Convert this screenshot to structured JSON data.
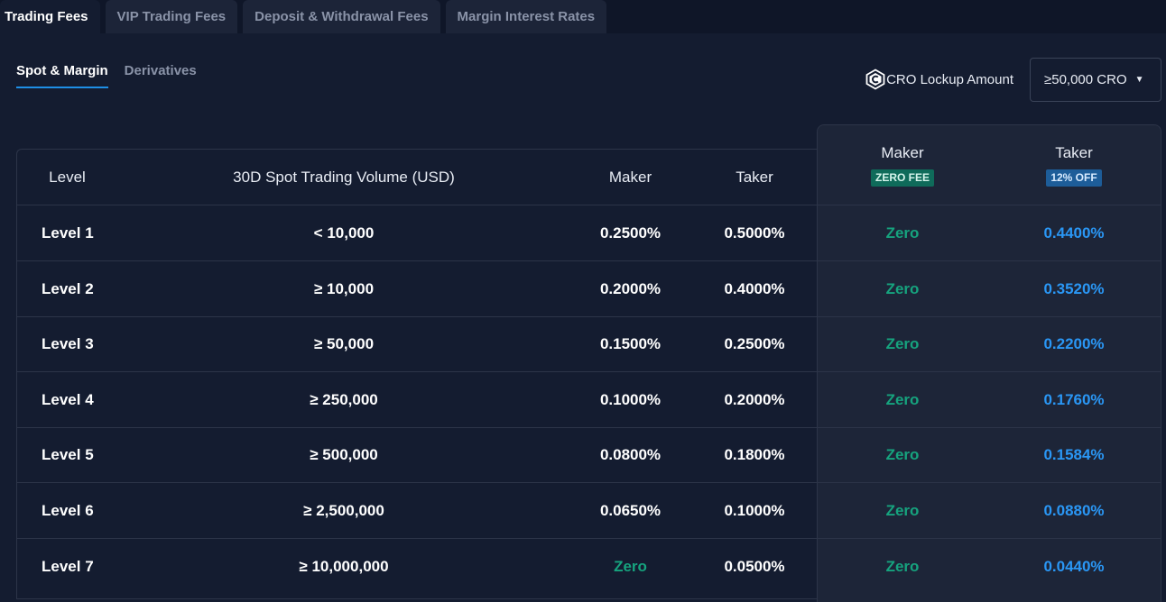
{
  "top_tabs": [
    "Trading Fees",
    "VIP Trading Fees",
    "Deposit & Withdrawal Fees",
    "Margin Interest Rates"
  ],
  "sub_tabs": [
    "Spot & Margin",
    "Derivatives"
  ],
  "lockup": {
    "label": "CRO Lockup Amount",
    "selected": "≥50,000 CRO",
    "icon": "cro-logo-icon"
  },
  "table": {
    "headers": {
      "level": "Level",
      "volume": "30D Spot Trading Volume (USD)",
      "maker": "Maker",
      "taker": "Taker",
      "cro_maker": "Maker",
      "cro_taker": "Taker",
      "cro_maker_badge": "ZERO FEE",
      "cro_taker_badge": "12% OFF"
    },
    "rows": [
      {
        "level": "Level 1",
        "volume": "< 10,000",
        "maker": "0.2500%",
        "taker": "0.5000%",
        "cro_maker": "Zero",
        "cro_taker": "0.4400%"
      },
      {
        "level": "Level 2",
        "volume": "≥ 10,000",
        "maker": "0.2000%",
        "taker": "0.4000%",
        "cro_maker": "Zero",
        "cro_taker": "0.3520%"
      },
      {
        "level": "Level 3",
        "volume": "≥ 50,000",
        "maker": "0.1500%",
        "taker": "0.2500%",
        "cro_maker": "Zero",
        "cro_taker": "0.2200%"
      },
      {
        "level": "Level 4",
        "volume": "≥ 250,000",
        "maker": "0.1000%",
        "taker": "0.2000%",
        "cro_maker": "Zero",
        "cro_taker": "0.1760%"
      },
      {
        "level": "Level 5",
        "volume": "≥ 500,000",
        "maker": "0.0800%",
        "taker": "0.1800%",
        "cro_maker": "Zero",
        "cro_taker": "0.1584%"
      },
      {
        "level": "Level 6",
        "volume": "≥ 2,500,000",
        "maker": "0.0650%",
        "taker": "0.1000%",
        "cro_maker": "Zero",
        "cro_taker": "0.0880%"
      },
      {
        "level": "Level 7",
        "volume": "≥ 10,000,000",
        "maker": "Zero",
        "taker": "0.0500%",
        "cro_maker": "Zero",
        "cro_taker": "0.0440%"
      }
    ]
  },
  "colors": {
    "background": "#141c30",
    "accent": "#1e8fe6",
    "zero_green": "#16a37e",
    "discount_blue": "#2a97f5"
  }
}
